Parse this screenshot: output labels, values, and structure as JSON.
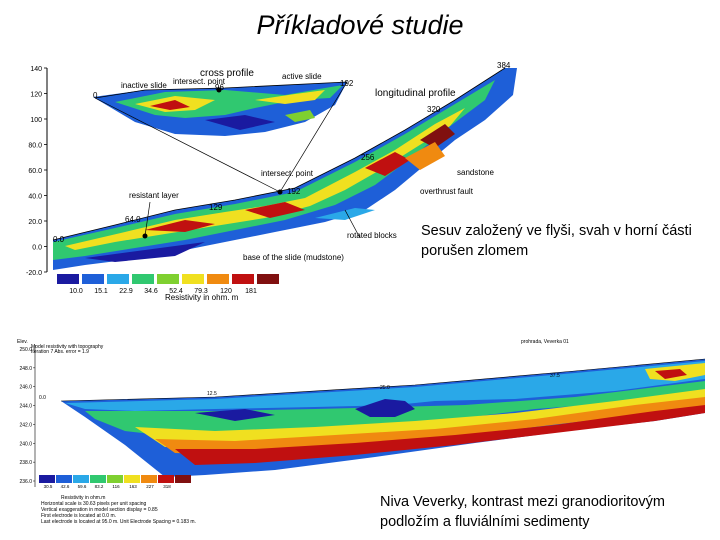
{
  "slide": {
    "title": "Příkladové studie",
    "caption_top": "Sesuv založený ve flyši, svah v horní části porušen zlomem",
    "caption_bottom": "Niva Veverky, kontrast mezi granodioritovým podložím a fluviálními sedimenty"
  },
  "figure_top": {
    "y_ticks": [
      "140",
      "120",
      "100",
      "80.0",
      "60.0",
      "40.0",
      "20.0",
      "0.0",
      "-20.0"
    ],
    "labels": {
      "cross_profile": "cross profile",
      "inactive_slide": "inactive slide",
      "intersect_point": "intersect. point",
      "active_slide": "active slide",
      "n_192a": "192",
      "n_0": "0",
      "n_96": "96",
      "n_384": "384",
      "longitudinal_profile": "longitudinal profile",
      "n_320": "320",
      "n_256": "256",
      "sandstone": "sandstone",
      "intersect_point2": "intersect. point",
      "n_192b": "192",
      "overthrust_fault": "overthrust fault",
      "resistant_layer": "resistant layer",
      "n_129": "129",
      "n_64": "64.0",
      "n_00": "0.0",
      "rotated_blocks": "rotated blocks",
      "base_of_slide": "base of the slide (mudstone)"
    },
    "legend_values": [
      "10.0",
      "15.1",
      "22.9",
      "34.6",
      "52.4",
      "79.3",
      "120",
      "181"
    ],
    "legend_title": "Resistivity in ohm. m",
    "legend_colors": [
      "#1a1aa0",
      "#1e5fd8",
      "#2aa8e8",
      "#30c870",
      "#7fd030",
      "#f0e020",
      "#f08a10",
      "#c01010",
      "#801010"
    ]
  },
  "figure_bottom": {
    "header_lines": [
      "Elev.",
      "Model resistivity with topography",
      "Iteration 7 Abs. error = 1.9"
    ],
    "profile_name": "prohrada, Veverka 01",
    "y_ticks": [
      "250.0",
      "248.0",
      "246.0",
      "244.0",
      "242.0",
      "240.0",
      "238.0",
      "236.0"
    ],
    "surface_labels": [
      "0.0",
      "12.5",
      "25.0",
      "37.5",
      "50.0"
    ],
    "legend_values": [
      "30.5",
      "42.6",
      "59.6",
      "83.2",
      "116",
      "163",
      "227",
      "318"
    ],
    "legend_title": "Resistivity in ohm.m",
    "footer_lines": [
      "Horizontal scale is 30.63 pixels per unit spacing",
      "Vertical exaggeration in model section display = 0.85",
      "First electrode is located at 0.0 m.",
      "Last electrode is located at 95.0 m.    Unit Electrode Spacing = 0.183 m."
    ],
    "legend_colors": [
      "#1a1aa0",
      "#1e5fd8",
      "#2aa8e8",
      "#30c870",
      "#7fd030",
      "#f0e020",
      "#f08a10",
      "#c01010",
      "#801010"
    ]
  }
}
